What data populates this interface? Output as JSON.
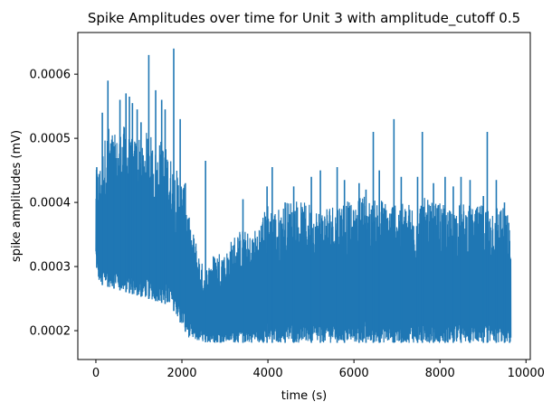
{
  "chart_data": {
    "type": "line",
    "title": "Spike Amplitudes over time for Unit 3 with amplitude_cutoff 0.5",
    "xlabel": "time (s)",
    "ylabel": "spike amplitudes (mV)",
    "xlim": [
      -420,
      10100
    ],
    "ylim": [
      0.000155,
      0.000665
    ],
    "xticks": [
      0,
      2000,
      4000,
      6000,
      8000,
      10000
    ],
    "xtick_labels": [
      "0",
      "2000",
      "4000",
      "6000",
      "8000",
      "10000"
    ],
    "yticks": [
      0.0002,
      0.0003,
      0.0004,
      0.0005,
      0.0006
    ],
    "ytick_labels": [
      "0.0002",
      "0.0003",
      "0.0004",
      "0.0005",
      "0.0006"
    ],
    "grid": false,
    "line_color": "#1f77b4",
    "envelope": {
      "x": [
        0,
        50,
        100,
        200,
        300,
        400,
        500,
        600,
        700,
        800,
        900,
        1000,
        1100,
        1200,
        1300,
        1400,
        1500,
        1600,
        1700,
        1800,
        1900,
        2000,
        2100,
        2150,
        2200,
        2300,
        2400,
        2500,
        2600,
        2700,
        2800,
        2900,
        3000,
        3200,
        3400,
        3600,
        3800,
        4000,
        4200,
        4400,
        4600,
        4800,
        5000,
        5200,
        5400,
        5600,
        5800,
        6000,
        6200,
        6400,
        6600,
        6800,
        7000,
        7200,
        7400,
        7600,
        7800,
        8000,
        8200,
        8400,
        8600,
        8800,
        9000,
        9200,
        9400,
        9600,
        9650
      ],
      "lower": [
        0.00031,
        0.00028,
        0.000272,
        0.00027,
        0.000268,
        0.000266,
        0.000264,
        0.000262,
        0.00026,
        0.000258,
        0.000256,
        0.000254,
        0.000252,
        0.00025,
        0.000248,
        0.000246,
        0.000244,
        0.000242,
        0.000238,
        0.000232,
        0.00022,
        0.000208,
        0.000196,
        0.00019,
        0.000186,
        0.000184,
        0.000183,
        0.000182,
        0.000182,
        0.000181,
        0.000181,
        0.000181,
        0.000181,
        0.000181,
        0.000181,
        0.000181,
        0.000181,
        0.000181,
        0.000181,
        0.000181,
        0.000181,
        0.000181,
        0.000181,
        0.000181,
        0.000181,
        0.000181,
        0.000181,
        0.000181,
        0.000181,
        0.000181,
        0.000181,
        0.000181,
        0.000181,
        0.000181,
        0.000181,
        0.000181,
        0.000181,
        0.000181,
        0.000181,
        0.000181,
        0.000181,
        0.000181,
        0.000181,
        0.000181,
        0.000181,
        0.000181,
        0.000181
      ],
      "upper": [
        0.00045,
        0.000455,
        0.00046,
        0.0005,
        0.00052,
        0.00051,
        0.0005,
        0.00052,
        0.00052,
        0.0005,
        0.0005,
        0.00051,
        0.00048,
        0.00052,
        0.0005,
        0.00048,
        0.0005,
        0.00049,
        0.00048,
        0.00046,
        0.00045,
        0.00044,
        0.00042,
        0.00039,
        0.00036,
        0.00035,
        0.00032,
        0.0003,
        0.0003,
        0.00032,
        0.00032,
        0.00033,
        0.00032,
        0.00035,
        0.00036,
        0.00035,
        0.00037,
        0.0004,
        0.00039,
        0.0004,
        0.00041,
        0.0004,
        0.0004,
        0.00039,
        0.0004,
        0.0004,
        0.00041,
        0.00039,
        0.00042,
        0.0004,
        0.00041,
        0.0004,
        0.00041,
        0.0004,
        0.0004,
        0.00041,
        0.0004,
        0.0004,
        0.00039,
        0.0004,
        0.0004,
        0.00039,
        0.0004,
        0.0004,
        0.0004,
        0.00038,
        0.00033
      ]
    },
    "peaks": [
      {
        "x": 20,
        "y": 0.000455
      },
      {
        "x": 150,
        "y": 0.00054
      },
      {
        "x": 280,
        "y": 0.00059
      },
      {
        "x": 420,
        "y": 0.00048
      },
      {
        "x": 560,
        "y": 0.00056
      },
      {
        "x": 700,
        "y": 0.00057
      },
      {
        "x": 780,
        "y": 0.000565
      },
      {
        "x": 850,
        "y": 0.000555
      },
      {
        "x": 960,
        "y": 0.000545
      },
      {
        "x": 1050,
        "y": 0.000525
      },
      {
        "x": 1230,
        "y": 0.00063
      },
      {
        "x": 1390,
        "y": 0.000575
      },
      {
        "x": 1530,
        "y": 0.00056
      },
      {
        "x": 1610,
        "y": 0.000545
      },
      {
        "x": 1810,
        "y": 0.00064
      },
      {
        "x": 1960,
        "y": 0.00053
      },
      {
        "x": 2080,
        "y": 0.00043
      },
      {
        "x": 2550,
        "y": 0.000465
      },
      {
        "x": 3420,
        "y": 0.000405
      },
      {
        "x": 3980,
        "y": 0.000425
      },
      {
        "x": 4100,
        "y": 0.000455
      },
      {
        "x": 4400,
        "y": 0.0004
      },
      {
        "x": 4600,
        "y": 0.000425
      },
      {
        "x": 5010,
        "y": 0.00044
      },
      {
        "x": 5220,
        "y": 0.00045
      },
      {
        "x": 5610,
        "y": 0.000455
      },
      {
        "x": 5780,
        "y": 0.000435
      },
      {
        "x": 6120,
        "y": 0.00043
      },
      {
        "x": 6280,
        "y": 0.00042
      },
      {
        "x": 6450,
        "y": 0.00051
      },
      {
        "x": 6590,
        "y": 0.00045
      },
      {
        "x": 6930,
        "y": 0.00053
      },
      {
        "x": 7100,
        "y": 0.00044
      },
      {
        "x": 7480,
        "y": 0.00044
      },
      {
        "x": 7590,
        "y": 0.00051
      },
      {
        "x": 7850,
        "y": 0.00043
      },
      {
        "x": 8120,
        "y": 0.00044
      },
      {
        "x": 8310,
        "y": 0.000425
      },
      {
        "x": 8490,
        "y": 0.00044
      },
      {
        "x": 8700,
        "y": 0.000435
      },
      {
        "x": 9010,
        "y": 0.00041
      },
      {
        "x": 9100,
        "y": 0.00051
      },
      {
        "x": 9310,
        "y": 0.000435
      },
      {
        "x": 9500,
        "y": 0.0004
      },
      {
        "x": 9620,
        "y": 0.00034
      }
    ]
  }
}
